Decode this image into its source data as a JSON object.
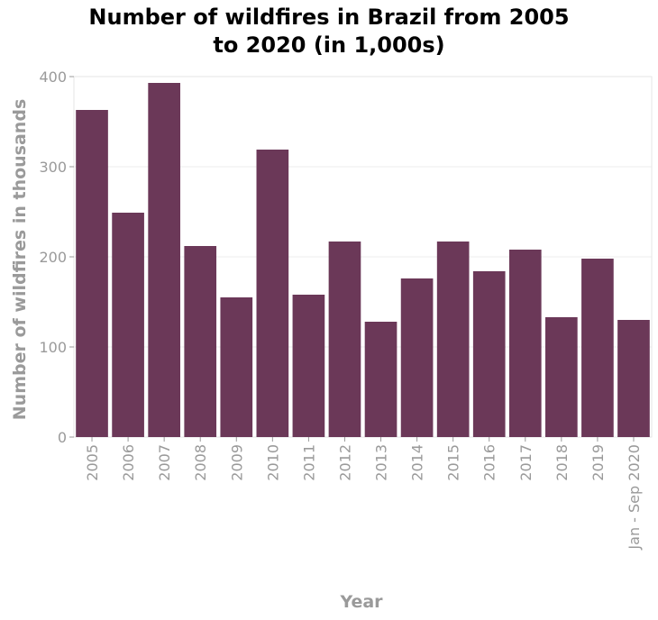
{
  "chart_data": {
    "type": "bar",
    "title_lines": [
      "Number of wildfires in Brazil from 2005",
      "to 2020 (in 1,000s)"
    ],
    "xlabel": "Year",
    "ylabel": "Number of wildfires in thousands",
    "categories": [
      "2005",
      "2006",
      "2007",
      "2008",
      "2009",
      "2010",
      "2011",
      "2012",
      "2013",
      "2014",
      "2015",
      "2016",
      "2017",
      "2018",
      "2019",
      "Jan - Sep 2020"
    ],
    "values": [
      363,
      249,
      393,
      212,
      155,
      319,
      158,
      217,
      128,
      176,
      217,
      184,
      208,
      133,
      198,
      130
    ],
    "ylim": [
      0,
      400
    ],
    "yticks": [
      0,
      100,
      200,
      300,
      400
    ],
    "grid": true,
    "legend": "none",
    "bar_color": "#6b3858"
  }
}
